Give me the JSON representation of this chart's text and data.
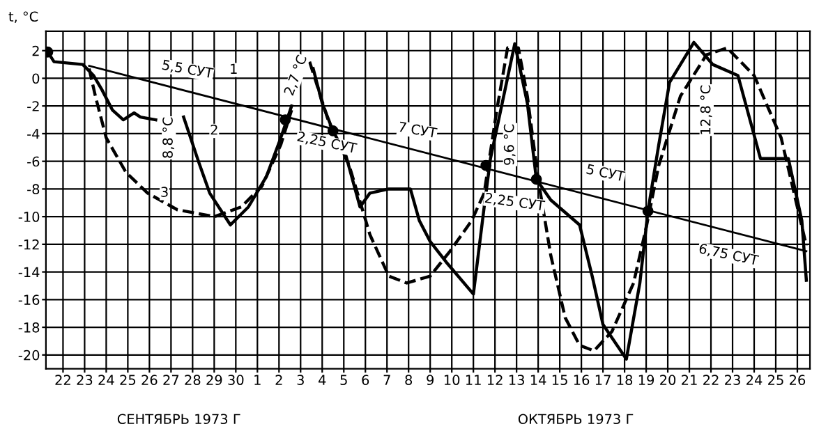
{
  "chart_data": {
    "type": "line",
    "ylabel": "t, °C",
    "xlim": [
      "1973-09-21T05:00",
      "1973-10-26T14:00"
    ],
    "ylim": [
      -21,
      3.4
    ],
    "xticks": [
      {
        "value": "1973-09-22",
        "label": "22"
      },
      {
        "value": "1973-09-23",
        "label": "23"
      },
      {
        "value": "1973-09-24",
        "label": "24"
      },
      {
        "value": "1973-09-25",
        "label": "25"
      },
      {
        "value": "1973-09-26",
        "label": "26"
      },
      {
        "value": "1973-09-27",
        "label": "27"
      },
      {
        "value": "1973-09-28",
        "label": "28"
      },
      {
        "value": "1973-09-29",
        "label": "29"
      },
      {
        "value": "1973-09-30",
        "label": "30"
      },
      {
        "value": "1973-10-01",
        "label": "1"
      },
      {
        "value": "1973-10-02",
        "label": "2"
      },
      {
        "value": "1973-10-03",
        "label": "3"
      },
      {
        "value": "1973-10-04",
        "label": "4"
      },
      {
        "value": "1973-10-05",
        "label": "5"
      },
      {
        "value": "1973-10-06",
        "label": "6"
      },
      {
        "value": "1973-10-07",
        "label": "7"
      },
      {
        "value": "1973-10-08",
        "label": "8"
      },
      {
        "value": "1973-10-09",
        "label": "9"
      },
      {
        "value": "1973-10-10",
        "label": "10"
      },
      {
        "value": "1973-10-11",
        "label": "11"
      },
      {
        "value": "1973-10-12",
        "label": "12"
      },
      {
        "value": "1973-10-13",
        "label": "13"
      },
      {
        "value": "1973-10-14",
        "label": "14"
      },
      {
        "value": "1973-10-15",
        "label": "15"
      },
      {
        "value": "1973-10-16",
        "label": "16"
      },
      {
        "value": "1973-10-17",
        "label": "17"
      },
      {
        "value": "1973-10-18",
        "label": "18"
      },
      {
        "value": "1973-10-19",
        "label": "19"
      },
      {
        "value": "1973-10-20",
        "label": "20"
      },
      {
        "value": "1973-10-21",
        "label": "21"
      },
      {
        "value": "1973-10-22",
        "label": "22"
      },
      {
        "value": "1973-10-23",
        "label": "23"
      },
      {
        "value": "1973-10-24",
        "label": "24"
      },
      {
        "value": "1973-10-25",
        "label": "25"
      },
      {
        "value": "1973-10-26",
        "label": "26"
      }
    ],
    "yticks": [
      2,
      0,
      -2,
      -4,
      -6,
      -8,
      -10,
      -12,
      -14,
      -16,
      -18,
      -20
    ],
    "grid": true,
    "series": [
      {
        "type": "line",
        "color": "#000000",
        "line_style": "solid",
        "x": [
          "1973-09-23T05:00",
          "1973-10-26T10:00"
        ],
        "values": [
          0.9,
          -12.5
        ]
      },
      {
        "type": "line",
        "color": "#000000",
        "line_style": "solid",
        "x": [
          "1973-09-21T07:00",
          "1973-09-21T14:00",
          "1973-09-22T22:00",
          "1973-09-23T10:00",
          "1973-09-23T19:00",
          "1973-09-24T07:00",
          "1973-09-24T19:00",
          "1973-09-25T07:00",
          "1973-09-25T14:00",
          "1973-09-26T07:00",
          "1973-09-27T00:00",
          "1973-09-27T14:00",
          "1973-09-28T07:00",
          "1973-09-28T19:00",
          "1973-09-29T07:00",
          "1973-09-29T18:00",
          "1973-09-30T14:00",
          "1973-10-01T10:00",
          "1973-10-02T02:00",
          "1973-10-02T14:00",
          "1973-10-03T02:00",
          "1973-10-03T14:00",
          "1973-10-04T00:00",
          "1973-10-04T12:00",
          "1973-10-05T02:00",
          "1973-10-05T18:00",
          "1973-10-06T05:00",
          "1973-10-07T02:00",
          "1973-10-08T02:00",
          "1973-10-08T12:00",
          "1973-10-09T00:00",
          "1973-10-09T18:00",
          "1973-10-11T00:00",
          "1973-10-11T12:00",
          "1973-10-11T19:00",
          "1973-10-12T22:00",
          "1973-10-13T12:00",
          "1973-10-13T22:00",
          "1973-10-14T14:00",
          "1973-10-15T22:00",
          "1973-10-16T12:00",
          "1973-10-17T00:00",
          "1973-10-18T02:00",
          "1973-10-18T17:00",
          "1973-10-19T02:00",
          "1973-10-19T14:00",
          "1973-10-20T02:00",
          "1973-10-21T05:00",
          "1973-10-22T02:00",
          "1973-10-23T06:00",
          "1973-10-24T07:00",
          "1973-10-25T14:00",
          "1973-10-26T05:00",
          "1973-10-26T10:00"
        ],
        "values": [
          1.9,
          1.2,
          1.0,
          0.2,
          -0.8,
          -2.3,
          -3.0,
          -2.5,
          -2.8,
          -3.0,
          null,
          -2.8,
          -6.1,
          -8.3,
          -9.5,
          -10.6,
          -9.3,
          -7.1,
          -4.3,
          -2.0,
          null,
          0.7,
          -1.8,
          -3.8,
          -5.5,
          -9.3,
          -8.3,
          -8.0,
          -8.0,
          -10.3,
          -11.8,
          -13.3,
          -15.6,
          -9.3,
          -5.8,
          2.5,
          -1.8,
          -7.3,
          -8.8,
          -10.6,
          -14.3,
          -17.8,
          -20.3,
          -14.8,
          -9.6,
          -4.8,
          -0.3,
          2.6,
          1.0,
          0.2,
          -5.8,
          -5.8,
          -10.3,
          -14.6
        ]
      },
      {
        "type": "line",
        "color": "#000000",
        "line_style": "dashed",
        "x": [
          "1973-09-23T05:00",
          "1973-09-23T12:00",
          "1973-09-24T00:00",
          "1973-09-24T22:00",
          "1973-09-25T22:00",
          "1973-09-27T07:00",
          "1973-09-29T00:00",
          "1973-09-30T06:00",
          "1973-10-01T05:00",
          "1973-10-02T02:00",
          "1973-10-02T14:00",
          "1973-10-03T00:00",
          "1973-10-03T10:00",
          "1973-10-04T07:00",
          "1973-10-05T06:00",
          "1973-10-06T05:00",
          "1973-10-07T02:00",
          "1973-10-07T22:00",
          "1973-10-09T00:00",
          "1973-10-09T22:00",
          "1973-10-10T22:00",
          "1973-10-11T12:00",
          "1973-10-12T02:00",
          "1973-10-12T14:00",
          "1973-10-13T02:00",
          "1973-10-13T12:00",
          "1973-10-14T00:00",
          "1973-10-14T14:00",
          "1973-10-15T06:00",
          "1973-10-15T22:00",
          "1973-10-16T14:00",
          "1973-10-17T10:00",
          "1973-10-18T10:00",
          "1973-10-19T00:00",
          "1973-10-19T14:00",
          "1973-10-20T14:00",
          "1973-10-21T19:00",
          "1973-10-22T18:00",
          "1973-10-24T00:00",
          "1973-10-25T06:00",
          "1973-10-26T10:00"
        ],
        "values": [
          0.7,
          -1.3,
          -4.3,
          -6.8,
          -8.3,
          -9.5,
          -10.0,
          -9.3,
          -7.8,
          -4.8,
          -2.3,
          null,
          1.2,
          -3.1,
          -6.3,
          -11.3,
          -14.3,
          -14.8,
          -14.3,
          -12.5,
          -10.3,
          -8.3,
          -2.3,
          2.2,
          2.2,
          -1.3,
          -7.3,
          -12.8,
          -17.3,
          -19.3,
          -19.7,
          -18.3,
          -14.8,
          -10.8,
          -6.3,
          -1.3,
          1.7,
          2.2,
          0.2,
          -4.3,
          -12.1
        ]
      },
      {
        "type": "scatter",
        "color": "#000000",
        "marker": "circle",
        "x": [
          "1973-09-21T07:00",
          "1973-10-02T07:00",
          "1973-10-04T12:00",
          "1973-10-11T14:00",
          "1973-10-13T22:00",
          "1973-10-19T02:00"
        ],
        "values": [
          1.9,
          -3.0,
          -3.8,
          -6.3,
          -7.3,
          -9.6
        ]
      }
    ],
    "annotations": [
      "5,5 СУТ",
      "1",
      "8,8 °C",
      "2",
      "3",
      "2,7 °C",
      "2,25 СУТ",
      "7 СУТ",
      "9,6 °C",
      "2,25 СУТ",
      "5 СУТ",
      "12,8 °C",
      "6,75 СУТ",
      "СЕНТЯБРЬ 1973 Г",
      "ОКТЯБРЬ 1973 Г"
    ]
  }
}
